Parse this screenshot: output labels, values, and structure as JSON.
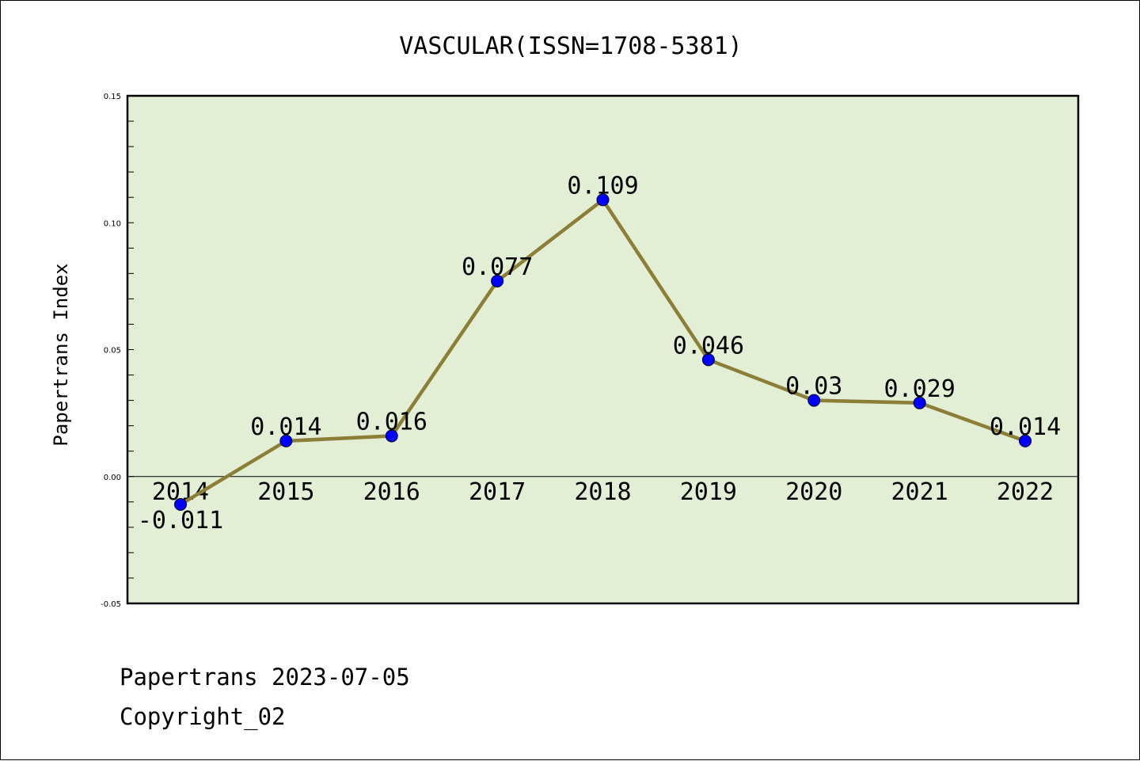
{
  "chart_data": {
    "type": "line",
    "title": "VASCULAR(ISSN=1708-5381)",
    "xlabel": "",
    "ylabel": "Papertrans Index",
    "categories": [
      "2014",
      "2015",
      "2016",
      "2017",
      "2018",
      "2019",
      "2020",
      "2021",
      "2022"
    ],
    "values": [
      -0.011,
      0.014,
      0.016,
      0.077,
      0.109,
      0.046,
      0.03,
      0.029,
      0.014
    ],
    "data_labels": [
      "-0.011",
      "0.014",
      "0.016",
      "0.077",
      "0.109",
      "0.046",
      "0.03",
      "0.029",
      "0.014"
    ],
    "ylim": [
      -0.05,
      0.15
    ],
    "yticks": [
      "0.15",
      "0.10",
      "0.05",
      "0.00",
      "-0.05"
    ],
    "ytick_values": [
      0.15,
      0.1,
      0.05,
      0.0,
      -0.05
    ],
    "grid": false,
    "colors": {
      "plot_background": "#e2efd5",
      "line": "#8c7e36",
      "marker": "#0000ff"
    }
  },
  "footer": {
    "line1": "Papertrans 2023-07-05",
    "line2": "Copyright_02"
  }
}
